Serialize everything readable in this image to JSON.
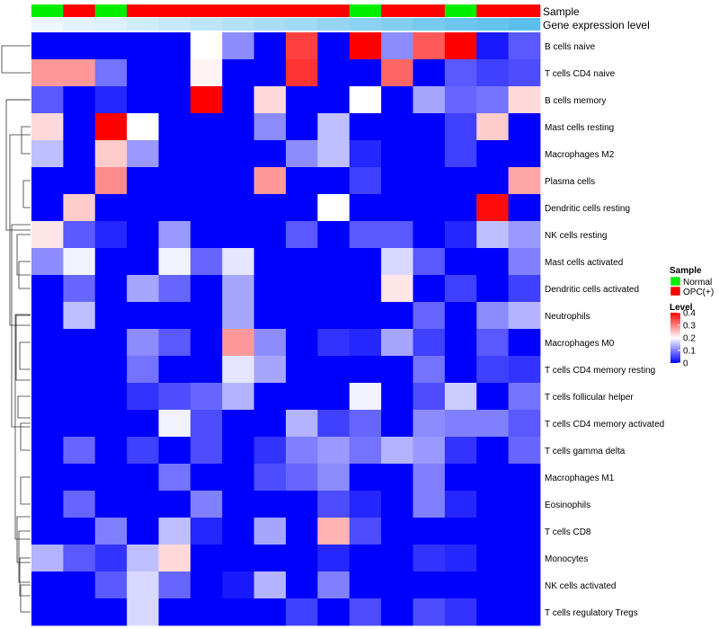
{
  "chart_data": {
    "type": "heatmap",
    "annotations": {
      "sample_label": "Sample",
      "gene_label": "Gene expression level",
      "sample_groups": [
        "Normal",
        "OPC(+)",
        "Normal",
        "OPC(+)",
        "OPC(+)",
        "OPC(+)",
        "OPC(+)",
        "OPC(+)",
        "OPC(+)",
        "OPC(+)",
        "Normal",
        "OPC(+)",
        "OPC(+)",
        "Normal",
        "OPC(+)",
        "OPC(+)"
      ],
      "gene_levels": [
        0.0,
        0.07,
        0.13,
        0.2,
        0.27,
        0.33,
        0.4,
        0.47,
        0.53,
        0.6,
        0.67,
        0.73,
        0.8,
        0.87,
        0.93,
        1.0
      ],
      "gene_colors": {
        "low": "#eef7fc",
        "high": "#5bbfec"
      }
    },
    "rows": [
      "B cells naive",
      "T cells CD4 naive",
      "B cells memory",
      "Mast cells resting",
      "Macrophages M2",
      "Plasma cells",
      "Dendritic cells resting",
      "NK cells resting",
      "Mast cells activated",
      "Dendritic cells activated",
      "Neutrophils",
      "Macrophages M0",
      "T cells CD4 memory resting",
      "T cells follicular helper",
      "T cells CD4 memory activated",
      "T cells gamma delta",
      "Macrophages M1",
      "Eosinophils",
      "T cells CD8",
      "Monocytes",
      "NK cells activated",
      "T cells regulatory  Tregs"
    ],
    "values": [
      [
        0,
        0,
        0,
        0,
        0,
        0.2,
        0.11,
        0,
        0.35,
        0,
        0.4,
        0.11,
        0.33,
        0.4,
        0.02,
        0.07
      ],
      [
        0.28,
        0.28,
        0.09,
        0,
        0,
        0.21,
        0,
        0,
        0.36,
        0,
        0,
        0.32,
        0,
        0.07,
        0.05,
        0.06
      ],
      [
        0.07,
        0,
        0.03,
        0,
        0,
        0.4,
        0,
        0.23,
        0,
        0,
        0.2,
        0,
        0.13,
        0.08,
        0.09,
        0.23
      ],
      [
        0.23,
        0,
        0.4,
        0.2,
        0,
        0,
        0,
        0.11,
        0,
        0.15,
        0,
        0,
        0,
        0.05,
        0.24,
        0
      ],
      [
        0.15,
        0,
        0.24,
        0.12,
        0,
        0,
        0,
        0,
        0.11,
        0.15,
        0.03,
        0,
        0,
        0.05,
        0,
        0
      ],
      [
        0,
        0,
        0.29,
        0,
        0,
        0,
        0,
        0.28,
        0,
        0,
        0.05,
        0,
        0,
        0,
        0,
        0.27
      ],
      [
        0,
        0.24,
        0,
        0,
        0,
        0,
        0,
        0,
        0,
        0.2,
        0,
        0,
        0,
        0,
        0.39,
        0
      ],
      [
        0.22,
        0.07,
        0.03,
        0,
        0.12,
        0,
        0,
        0,
        0.07,
        0,
        0.07,
        0.07,
        0,
        0.03,
        0.15,
        0.12
      ],
      [
        0.11,
        0.19,
        0,
        0,
        0.19,
        0.08,
        0.18,
        0,
        0,
        0,
        0,
        0.17,
        0.07,
        0,
        0,
        0.1
      ],
      [
        0,
        0.08,
        0,
        0.13,
        0.08,
        0,
        0.13,
        0,
        0,
        0,
        0,
        0.22,
        0,
        0.05,
        0,
        0.05
      ],
      [
        0,
        0.15,
        0,
        0,
        0,
        0,
        0.13,
        0,
        0,
        0,
        0,
        0,
        0.08,
        0,
        0.11,
        0.14
      ],
      [
        0,
        0,
        0,
        0.11,
        0.07,
        0,
        0.28,
        0.11,
        0,
        0.04,
        0.03,
        0.13,
        0.05,
        0,
        0.07,
        0
      ],
      [
        0,
        0,
        0,
        0.09,
        0,
        0,
        0.18,
        0.13,
        0,
        0,
        0,
        0,
        0.09,
        0,
        0.05,
        0.04
      ],
      [
        0,
        0,
        0,
        0.04,
        0.06,
        0.08,
        0.14,
        0,
        0,
        0,
        0.19,
        0,
        0.06,
        0.16,
        0,
        0.09
      ],
      [
        0,
        0,
        0,
        0,
        0.19,
        0.06,
        0,
        0,
        0.14,
        0.05,
        0.08,
        0,
        0.11,
        0.1,
        0.1,
        0.07
      ],
      [
        0,
        0.08,
        0,
        0.05,
        0,
        0.06,
        0,
        0.04,
        0.1,
        0.12,
        0.09,
        0.14,
        0.12,
        0.04,
        0,
        0.08
      ],
      [
        0,
        0,
        0,
        0,
        0.09,
        0,
        0,
        0.06,
        0.08,
        0.11,
        0,
        0,
        0.1,
        0,
        0,
        0
      ],
      [
        0,
        0.08,
        0,
        0,
        0,
        0.1,
        0,
        0,
        0,
        0.06,
        0.03,
        0,
        0.1,
        0.03,
        0,
        0
      ],
      [
        0,
        0,
        0.1,
        0,
        0.15,
        0.03,
        0,
        0.13,
        0,
        0.26,
        0.06,
        0,
        0,
        0,
        0,
        0
      ],
      [
        0.14,
        0.07,
        0.04,
        0.15,
        0.23,
        0,
        0,
        0,
        0,
        0.03,
        0,
        0,
        0.04,
        0.03,
        0,
        0
      ],
      [
        0,
        0,
        0.07,
        0.17,
        0.08,
        0,
        0.02,
        0.14,
        0,
        0.1,
        0,
        0,
        0,
        0,
        0,
        0
      ],
      [
        0,
        0,
        0,
        0.17,
        0,
        0,
        0,
        0,
        0.05,
        0,
        0.06,
        0,
        0.06,
        0.04,
        0,
        0
      ]
    ],
    "color_scale": {
      "min": 0,
      "max": 0.4,
      "low": "#0000ff",
      "mid": "#ffffff",
      "high": "#ff0000"
    },
    "legends": {
      "sample_title": "Sample",
      "sample_items": [
        {
          "label": "Normal",
          "color": "#00ee00"
        },
        {
          "label": "OPC(+)",
          "color": "#ff0000"
        }
      ],
      "level_title": "Level",
      "level_ticks": [
        "0.4",
        "0.3",
        "0.2",
        "0.1",
        "0"
      ]
    },
    "group_colors": {
      "Normal": "#00ee00",
      "OPC(+)": "#ff0000"
    }
  }
}
